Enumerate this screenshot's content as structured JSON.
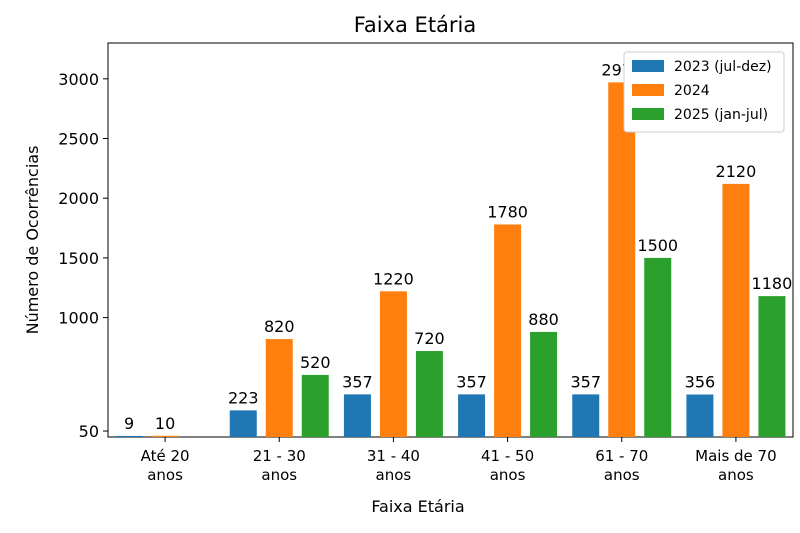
{
  "chart_data": {
    "type": "bar",
    "title": "Faixa Etária",
    "x_label": "Faixa Etária",
    "y_label": "Número de Ocorrências",
    "categories": [
      "Até 20 anos",
      "21 - 30 anos",
      "31 - 40 anos",
      "41 - 50 anos",
      "61 - 70 anos",
      "Mais de 70 anos"
    ],
    "series": [
      {
        "name": "2023 (jul-dez)",
        "color": "#1f77b4",
        "values": [
          9,
          223,
          357,
          357,
          357,
          356
        ]
      },
      {
        "name": "2024",
        "color": "#ff7f0e",
        "values": [
          10,
          820,
          1220,
          1780,
          2970,
          2120
        ]
      },
      {
        "name": "2025 (jan-jul)",
        "color": "#2ca02c",
        "values": [
          null,
          520,
          720,
          880,
          1500,
          1180
        ]
      }
    ],
    "ylim": [
      0,
      3300
    ],
    "yticks": [
      50,
      1000,
      1500,
      2000,
      2500,
      3000
    ],
    "legend": "upper right"
  }
}
